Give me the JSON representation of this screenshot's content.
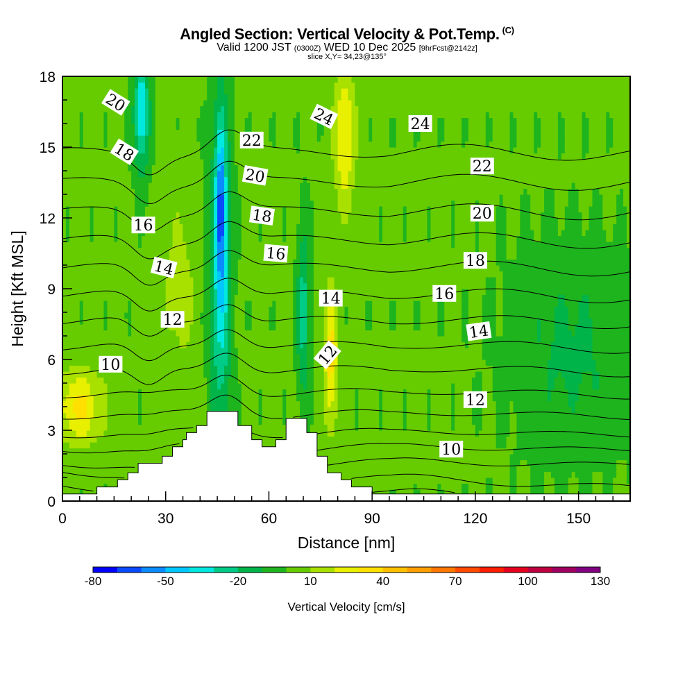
{
  "header": {
    "title": "Angled Section: Vertical Velocity & Pot.Temp.",
    "title_unit": "(C)",
    "valid_prefix": "Valid 1200 JST",
    "valid_utc": "(0300Z)",
    "valid_date": "WED 10 Dec 2025",
    "forecast": "[9hrFcst@2142z]",
    "slice": "slice X,Y= 34,23@135°"
  },
  "chart_data": {
    "type": "heatmap",
    "title": "Angled Section: Vertical Velocity & Pot.Temp.",
    "xlabel": "Distance [nm]",
    "ylabel": "Height [Kft MSL]",
    "xlim": [
      0,
      165
    ],
    "ylim": [
      0,
      18
    ],
    "x_ticks": [
      0,
      30,
      60,
      90,
      120,
      150
    ],
    "y_ticks": [
      0,
      3,
      6,
      9,
      12,
      15,
      18
    ],
    "colorbar": {
      "label": "Vertical Velocity [cm/s]",
      "bounds": [
        -80,
        130
      ],
      "tick_values": [
        -80,
        -50,
        -20,
        10,
        40,
        70,
        100,
        130
      ],
      "colors": [
        "#0000ff",
        "#0a4aff",
        "#0a8cff",
        "#00c8ff",
        "#00e8e0",
        "#00cc88",
        "#00b44a",
        "#1eb41e",
        "#66cc00",
        "#a8e000",
        "#e8f000",
        "#ffe000",
        "#ffc000",
        "#ffa000",
        "#ff7800",
        "#ff4a00",
        "#ff1e00",
        "#e6001e",
        "#be0040",
        "#a00060",
        "#800080"
      ]
    },
    "terrain": [
      [
        0,
        0.3
      ],
      [
        10,
        0.3
      ],
      [
        10,
        0.6
      ],
      [
        16,
        0.6
      ],
      [
        16,
        0.9
      ],
      [
        19,
        0.9
      ],
      [
        19,
        1.2
      ],
      [
        22,
        1.2
      ],
      [
        22,
        1.6
      ],
      [
        29,
        1.6
      ],
      [
        29,
        1.9
      ],
      [
        32,
        1.9
      ],
      [
        32,
        2.3
      ],
      [
        35,
        2.3
      ],
      [
        35,
        2.6
      ],
      [
        36,
        2.6
      ],
      [
        36,
        2.9
      ],
      [
        39,
        2.9
      ],
      [
        39,
        3.2
      ],
      [
        42,
        3.2
      ],
      [
        42,
        3.8
      ],
      [
        51,
        3.8
      ],
      [
        51,
        3.2
      ],
      [
        55,
        3.2
      ],
      [
        55,
        2.6
      ],
      [
        58,
        2.6
      ],
      [
        58,
        2.3
      ],
      [
        62,
        2.3
      ],
      [
        62,
        2.6
      ],
      [
        65,
        2.6
      ],
      [
        65,
        3.5
      ],
      [
        71,
        3.5
      ],
      [
        71,
        2.9
      ],
      [
        74,
        2.9
      ],
      [
        74,
        1.9
      ],
      [
        77,
        1.9
      ],
      [
        77,
        1.2
      ],
      [
        81,
        1.2
      ],
      [
        81,
        0.9
      ],
      [
        84,
        0.9
      ],
      [
        84,
        0.6
      ],
      [
        90,
        0.6
      ],
      [
        90,
        0.3
      ],
      [
        165,
        0.3
      ]
    ],
    "velocity_fields": [
      {
        "name": "broad downdraft",
        "cx": 46,
        "cy": 9.8,
        "sx": 3.0,
        "sy": 7.2,
        "value": -38
      },
      {
        "name": "core downdraft",
        "cx": 46,
        "cy": 12.5,
        "sx": 1.4,
        "sy": 3.2,
        "value": -38
      },
      {
        "name": "upper-left downdraft",
        "cx": 23,
        "cy": 16.5,
        "sx": 2.2,
        "sy": 2.5,
        "value": -42
      },
      {
        "name": "mid downdraft",
        "cx": 70,
        "cy": 8.0,
        "sx": 1.8,
        "sy": 3.5,
        "value": -28
      },
      {
        "name": "left surface updraft",
        "cx": 5,
        "cy": 4.0,
        "sx": 7.0,
        "sy": 1.6,
        "value": 30
      },
      {
        "name": "left rising band",
        "cx": 34,
        "cy": 9.0,
        "sx": 4.5,
        "sy": 3.5,
        "value": 14
      },
      {
        "name": "central updraft",
        "cx": 78,
        "cy": 6.0,
        "sx": 2.0,
        "sy": 3.0,
        "value": 32
      },
      {
        "name": "upper updraft",
        "cx": 82,
        "cy": 15.5,
        "sx": 3.0,
        "sy": 3.0,
        "value": 30
      },
      {
        "name": "right sinking region",
        "cx": 148,
        "cy": 6.5,
        "sx": 18.0,
        "sy": 4.5,
        "value": -14
      }
    ],
    "theta_contours_levels": [
      10,
      11,
      12,
      13,
      14,
      15,
      16,
      17,
      18,
      19,
      20,
      21,
      22,
      23,
      24,
      25
    ],
    "contour_labels": [
      {
        "text": "10",
        "x": 14,
        "y": 5.8,
        "angle": 0
      },
      {
        "text": "12",
        "x": 32,
        "y": 7.7,
        "angle": 0
      },
      {
        "text": "14",
        "x": 29.5,
        "y": 9.9,
        "angle": 14
      },
      {
        "text": "16",
        "x": 23.5,
        "y": 11.7,
        "angle": 0
      },
      {
        "text": "18",
        "x": 18,
        "y": 14.8,
        "angle": 32
      },
      {
        "text": "20",
        "x": 15.5,
        "y": 16.9,
        "angle": 32
      },
      {
        "text": "22",
        "x": 55,
        "y": 15.3,
        "angle": 0
      },
      {
        "text": "20",
        "x": 56,
        "y": 13.8,
        "angle": 10
      },
      {
        "text": "18",
        "x": 58,
        "y": 12.1,
        "angle": 8
      },
      {
        "text": "16",
        "x": 62,
        "y": 10.5,
        "angle": 5
      },
      {
        "text": "24",
        "x": 76,
        "y": 16.3,
        "angle": 26
      },
      {
        "text": "24",
        "x": 104,
        "y": 16.0,
        "angle": 0
      },
      {
        "text": "14",
        "x": 78,
        "y": 8.6,
        "angle": 0
      },
      {
        "text": "12",
        "x": 77,
        "y": 6.2,
        "angle": -50
      },
      {
        "text": "22",
        "x": 122,
        "y": 14.2,
        "angle": 0
      },
      {
        "text": "20",
        "x": 122,
        "y": 12.2,
        "angle": 0
      },
      {
        "text": "18",
        "x": 120,
        "y": 10.2,
        "angle": 0
      },
      {
        "text": "16",
        "x": 111,
        "y": 8.8,
        "angle": 0
      },
      {
        "text": "14",
        "x": 121,
        "y": 7.2,
        "angle": -8
      },
      {
        "text": "12",
        "x": 120,
        "y": 4.3,
        "angle": 0
      },
      {
        "text": "10",
        "x": 113,
        "y": 2.2,
        "angle": 0
      }
    ]
  }
}
